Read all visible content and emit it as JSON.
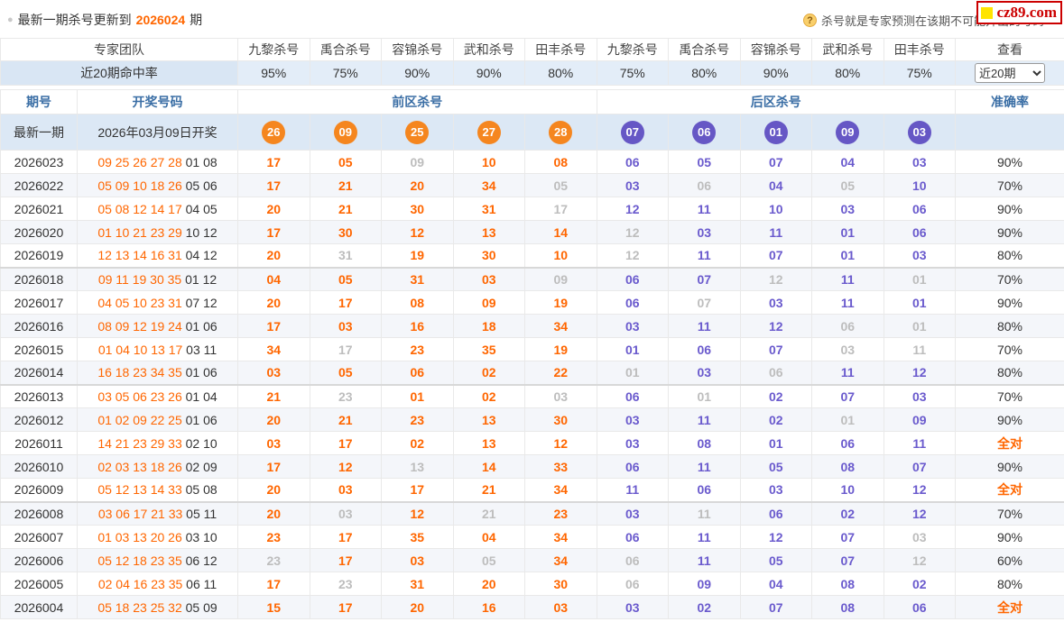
{
  "topbar": {
    "notice_prefix": "最新一期杀号更新到",
    "notice_issue": "2026024",
    "notice_suffix": "期",
    "help_glyph": "?",
    "help_text": "杀号就是专家预测在该期不可能开出的号码",
    "logo": "cz89.com"
  },
  "header": {
    "team": "专家团队",
    "experts": [
      "九黎杀号",
      "禹合杀号",
      "容锦杀号",
      "武和杀号",
      "田丰杀号",
      "九黎杀号",
      "禹合杀号",
      "容锦杀号",
      "武和杀号",
      "田丰杀号"
    ],
    "view": "查看",
    "hit_rate_label": "近20期命中率",
    "hit_rates": [
      "95%",
      "75%",
      "90%",
      "90%",
      "80%",
      "75%",
      "80%",
      "90%",
      "80%",
      "75%"
    ],
    "range_selected": "近20期",
    "issue_col": "期号",
    "draw_col": "开奖号码",
    "front_col": "前区杀号",
    "back_col": "后区杀号",
    "accuracy_col": "准确率"
  },
  "latest": {
    "label": "最新一期",
    "date": "2026年03月09日开奖",
    "front_balls": [
      "26",
      "09",
      "25",
      "27",
      "28"
    ],
    "back_balls": [
      "07",
      "06",
      "01",
      "09",
      "03"
    ]
  },
  "rows": [
    {
      "issue": "2026023",
      "front_draw": "09 25 26 27 28",
      "back_draw": "01 08",
      "front_kills": [
        "17",
        "05",
        "09",
        "10",
        "08"
      ],
      "front_miss": [
        0,
        0,
        1,
        0,
        0
      ],
      "back_kills": [
        "06",
        "05",
        "07",
        "04",
        "03"
      ],
      "back_miss": [
        0,
        0,
        0,
        0,
        0
      ],
      "accuracy": "90%",
      "perfect": false
    },
    {
      "issue": "2026022",
      "front_draw": "05 09 10 18 26",
      "back_draw": "05 06",
      "front_kills": [
        "17",
        "21",
        "20",
        "34",
        "05"
      ],
      "front_miss": [
        0,
        0,
        0,
        0,
        1
      ],
      "back_kills": [
        "03",
        "06",
        "04",
        "05",
        "10"
      ],
      "back_miss": [
        0,
        1,
        0,
        1,
        0
      ],
      "accuracy": "70%",
      "perfect": false
    },
    {
      "issue": "2026021",
      "front_draw": "05 08 12 14 17",
      "back_draw": "04 05",
      "front_kills": [
        "20",
        "21",
        "30",
        "31",
        "17"
      ],
      "front_miss": [
        0,
        0,
        0,
        0,
        1
      ],
      "back_kills": [
        "12",
        "11",
        "10",
        "03",
        "06"
      ],
      "back_miss": [
        0,
        0,
        0,
        0,
        0
      ],
      "accuracy": "90%",
      "perfect": false
    },
    {
      "issue": "2026020",
      "front_draw": "01 10 21 23 29",
      "back_draw": "10 12",
      "front_kills": [
        "17",
        "30",
        "12",
        "13",
        "14"
      ],
      "front_miss": [
        0,
        0,
        0,
        0,
        0
      ],
      "back_kills": [
        "12",
        "03",
        "11",
        "01",
        "06"
      ],
      "back_miss": [
        1,
        0,
        0,
        0,
        0
      ],
      "accuracy": "90%",
      "perfect": false
    },
    {
      "issue": "2026019",
      "front_draw": "12 13 14 16 31",
      "back_draw": "04 12",
      "front_kills": [
        "20",
        "31",
        "19",
        "30",
        "10"
      ],
      "front_miss": [
        0,
        1,
        0,
        0,
        0
      ],
      "back_kills": [
        "12",
        "11",
        "07",
        "01",
        "03"
      ],
      "back_miss": [
        1,
        0,
        0,
        0,
        0
      ],
      "accuracy": "80%",
      "perfect": false
    },
    {
      "issue": "2026018",
      "front_draw": "09 11 19 30 35",
      "back_draw": "01 12",
      "front_kills": [
        "04",
        "05",
        "31",
        "03",
        "09"
      ],
      "front_miss": [
        0,
        0,
        0,
        0,
        1
      ],
      "back_kills": [
        "06",
        "07",
        "12",
        "11",
        "01"
      ],
      "back_miss": [
        0,
        0,
        1,
        0,
        1
      ],
      "accuracy": "70%",
      "perfect": false
    },
    {
      "issue": "2026017",
      "front_draw": "04 05 10 23 31",
      "back_draw": "07 12",
      "front_kills": [
        "20",
        "17",
        "08",
        "09",
        "19"
      ],
      "front_miss": [
        0,
        0,
        0,
        0,
        0
      ],
      "back_kills": [
        "06",
        "07",
        "03",
        "11",
        "01"
      ],
      "back_miss": [
        0,
        1,
        0,
        0,
        0
      ],
      "accuracy": "90%",
      "perfect": false
    },
    {
      "issue": "2026016",
      "front_draw": "08 09 12 19 24",
      "back_draw": "01 06",
      "front_kills": [
        "17",
        "03",
        "16",
        "18",
        "34"
      ],
      "front_miss": [
        0,
        0,
        0,
        0,
        0
      ],
      "back_kills": [
        "03",
        "11",
        "12",
        "06",
        "01"
      ],
      "back_miss": [
        0,
        0,
        0,
        1,
        1
      ],
      "accuracy": "80%",
      "perfect": false
    },
    {
      "issue": "2026015",
      "front_draw": "01 04 10 13 17",
      "back_draw": "03 11",
      "front_kills": [
        "34",
        "17",
        "23",
        "35",
        "19"
      ],
      "front_miss": [
        0,
        1,
        0,
        0,
        0
      ],
      "back_kills": [
        "01",
        "06",
        "07",
        "03",
        "11"
      ],
      "back_miss": [
        0,
        0,
        0,
        1,
        1
      ],
      "accuracy": "70%",
      "perfect": false
    },
    {
      "issue": "2026014",
      "front_draw": "16 18 23 34 35",
      "back_draw": "01 06",
      "front_kills": [
        "03",
        "05",
        "06",
        "02",
        "22"
      ],
      "front_miss": [
        0,
        0,
        0,
        0,
        0
      ],
      "back_kills": [
        "01",
        "03",
        "06",
        "11",
        "12"
      ],
      "back_miss": [
        1,
        0,
        1,
        0,
        0
      ],
      "accuracy": "80%",
      "perfect": false
    },
    {
      "issue": "2026013",
      "front_draw": "03 05 06 23 26",
      "back_draw": "01 04",
      "front_kills": [
        "21",
        "23",
        "01",
        "02",
        "03"
      ],
      "front_miss": [
        0,
        1,
        0,
        0,
        1
      ],
      "back_kills": [
        "06",
        "01",
        "02",
        "07",
        "03"
      ],
      "back_miss": [
        0,
        1,
        0,
        0,
        0
      ],
      "accuracy": "70%",
      "perfect": false
    },
    {
      "issue": "2026012",
      "front_draw": "01 02 09 22 25",
      "back_draw": "01 06",
      "front_kills": [
        "20",
        "21",
        "23",
        "13",
        "30"
      ],
      "front_miss": [
        0,
        0,
        0,
        0,
        0
      ],
      "back_kills": [
        "03",
        "11",
        "02",
        "01",
        "09"
      ],
      "back_miss": [
        0,
        0,
        0,
        1,
        0
      ],
      "accuracy": "90%",
      "perfect": false
    },
    {
      "issue": "2026011",
      "front_draw": "14 21 23 29 33",
      "back_draw": "02 10",
      "front_kills": [
        "03",
        "17",
        "02",
        "13",
        "12"
      ],
      "front_miss": [
        0,
        0,
        0,
        0,
        0
      ],
      "back_kills": [
        "03",
        "08",
        "01",
        "06",
        "11"
      ],
      "back_miss": [
        0,
        0,
        0,
        0,
        0
      ],
      "accuracy": "全对",
      "perfect": true
    },
    {
      "issue": "2026010",
      "front_draw": "02 03 13 18 26",
      "back_draw": "02 09",
      "front_kills": [
        "17",
        "12",
        "13",
        "14",
        "33"
      ],
      "front_miss": [
        0,
        0,
        1,
        0,
        0
      ],
      "back_kills": [
        "06",
        "11",
        "05",
        "08",
        "07"
      ],
      "back_miss": [
        0,
        0,
        0,
        0,
        0
      ],
      "accuracy": "90%",
      "perfect": false
    },
    {
      "issue": "2026009",
      "front_draw": "05 12 13 14 33",
      "back_draw": "05 08",
      "front_kills": [
        "20",
        "03",
        "17",
        "21",
        "34"
      ],
      "front_miss": [
        0,
        0,
        0,
        0,
        0
      ],
      "back_kills": [
        "11",
        "06",
        "03",
        "10",
        "12"
      ],
      "back_miss": [
        0,
        0,
        0,
        0,
        0
      ],
      "accuracy": "全对",
      "perfect": true
    },
    {
      "issue": "2026008",
      "front_draw": "03 06 17 21 33",
      "back_draw": "05 11",
      "front_kills": [
        "20",
        "03",
        "12",
        "21",
        "23"
      ],
      "front_miss": [
        0,
        1,
        0,
        1,
        0
      ],
      "back_kills": [
        "03",
        "11",
        "06",
        "02",
        "12"
      ],
      "back_miss": [
        0,
        1,
        0,
        0,
        0
      ],
      "accuracy": "70%",
      "perfect": false
    },
    {
      "issue": "2026007",
      "front_draw": "01 03 13 20 26",
      "back_draw": "03 10",
      "front_kills": [
        "23",
        "17",
        "35",
        "04",
        "34"
      ],
      "front_miss": [
        0,
        0,
        0,
        0,
        0
      ],
      "back_kills": [
        "06",
        "11",
        "12",
        "07",
        "03"
      ],
      "back_miss": [
        0,
        0,
        0,
        0,
        1
      ],
      "accuracy": "90%",
      "perfect": false
    },
    {
      "issue": "2026006",
      "front_draw": "05 12 18 23 35",
      "back_draw": "06 12",
      "front_kills": [
        "23",
        "17",
        "03",
        "05",
        "34"
      ],
      "front_miss": [
        1,
        0,
        0,
        1,
        0
      ],
      "back_kills": [
        "06",
        "11",
        "05",
        "07",
        "12"
      ],
      "back_miss": [
        1,
        0,
        0,
        0,
        1
      ],
      "accuracy": "60%",
      "perfect": false
    },
    {
      "issue": "2026005",
      "front_draw": "02 04 16 23 35",
      "back_draw": "06 11",
      "front_kills": [
        "17",
        "23",
        "31",
        "20",
        "30"
      ],
      "front_miss": [
        0,
        1,
        0,
        0,
        0
      ],
      "back_kills": [
        "06",
        "09",
        "04",
        "08",
        "02"
      ],
      "back_miss": [
        1,
        0,
        0,
        0,
        0
      ],
      "accuracy": "80%",
      "perfect": false
    },
    {
      "issue": "2026004",
      "front_draw": "05 18 23 25 32",
      "back_draw": "05 09",
      "front_kills": [
        "15",
        "17",
        "20",
        "16",
        "03"
      ],
      "front_miss": [
        0,
        0,
        0,
        0,
        0
      ],
      "back_kills": [
        "03",
        "02",
        "07",
        "08",
        "06"
      ],
      "back_miss": [
        0,
        0,
        0,
        0,
        0
      ],
      "accuracy": "全对",
      "perfect": true
    }
  ],
  "colors": {
    "kill_orange": "#f60",
    "kill_purple": "#6a5acd",
    "miss_gray": "#bdbdbd",
    "header_blue": "#3a6ea5",
    "highlight_bg": "#dce8f5",
    "stripe_bg": "#f4f6fa",
    "ball_orange": "#f5861f",
    "ball_purple": "#6657c5",
    "logo_red": "#cc0000",
    "logo_yellow": "#ffe400"
  }
}
